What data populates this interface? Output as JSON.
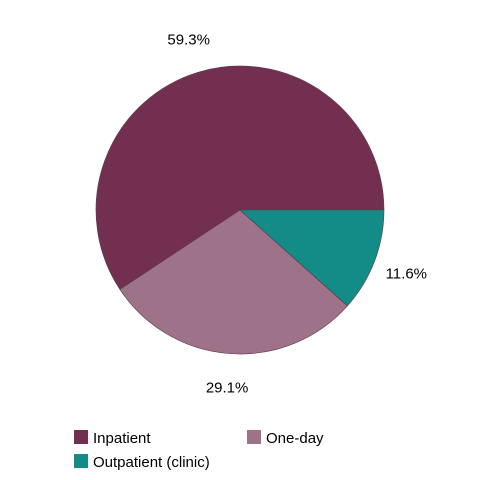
{
  "chart_data": {
    "type": "pie",
    "title": "",
    "legend_position": "bottom",
    "start": "3 o'clock, counter-clockwise",
    "slices": [
      {
        "name": "Inpatient",
        "value": 59.3,
        "label": "59.3%",
        "color": "#722F50"
      },
      {
        "name": "One-day",
        "value": 29.1,
        "label": "29.1%",
        "color": "#9E7389"
      },
      {
        "name": "Outpatient (clinic)",
        "value": 11.6,
        "label": "11.6%",
        "color": "#138B87"
      }
    ]
  }
}
